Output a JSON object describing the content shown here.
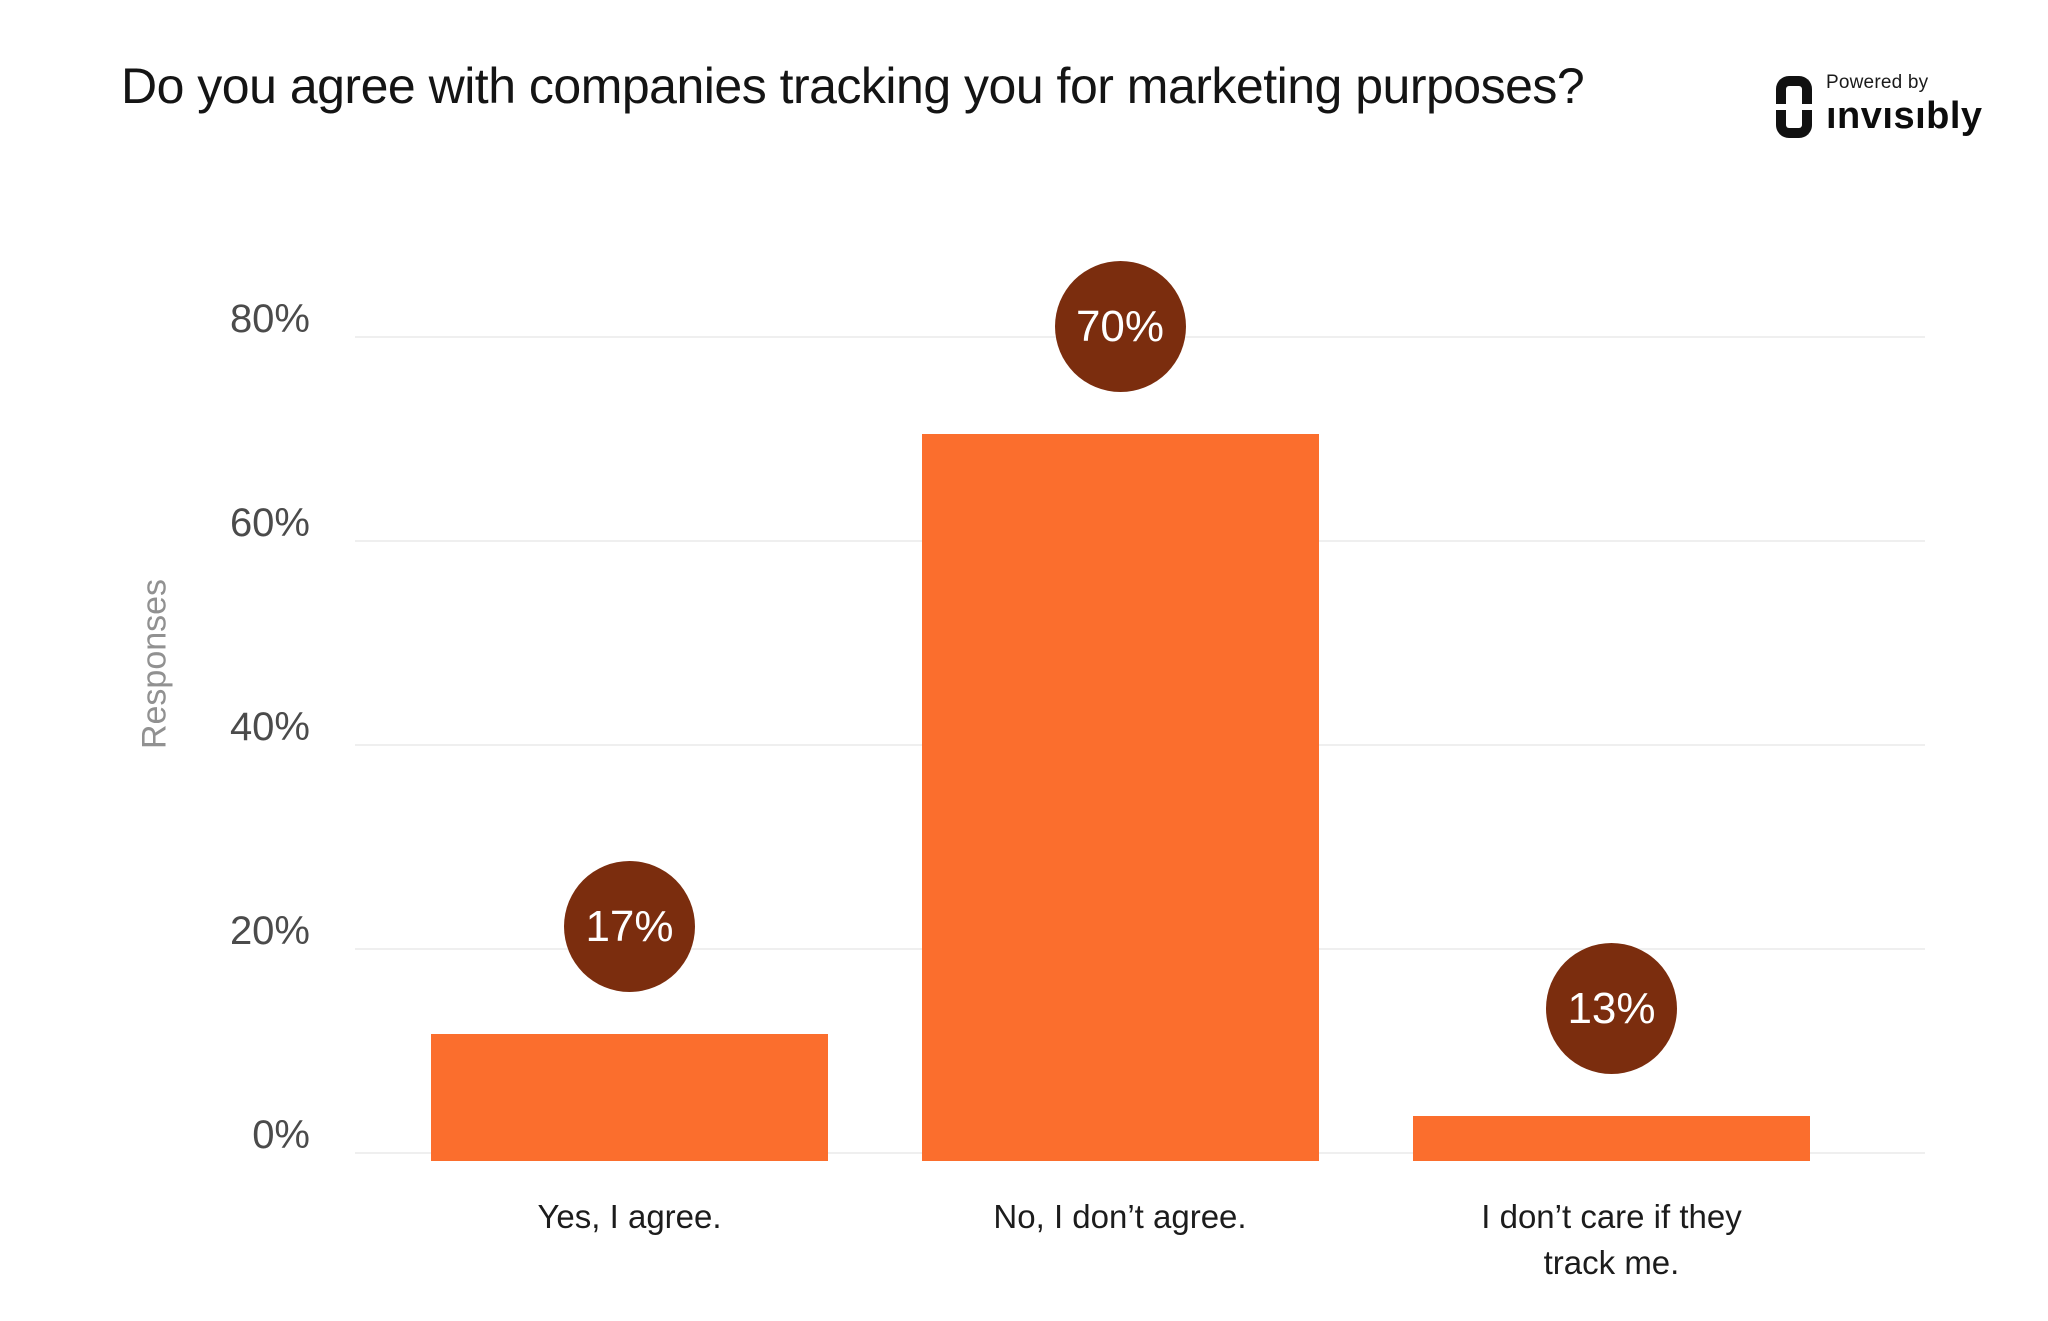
{
  "header": {
    "title": "Do you agree with companies tracking you for marketing purposes?",
    "brand": {
      "powered_by": "Powered by",
      "wordmark": "ınvısıbly"
    }
  },
  "chart_data": {
    "type": "bar",
    "title": "Do you agree with companies tracking you for marketing purposes?",
    "categories": [
      "Yes, I agree.",
      "No, I don’t agree.",
      "I don’t care if they track me."
    ],
    "values": [
      17,
      70,
      13
    ],
    "value_labels": [
      "17%",
      "70%",
      "13%"
    ],
    "bar_drawn_height_pct": [
      12.2,
      70,
      4.3
    ],
    "ylabel": "Responses",
    "xlabel": "",
    "yticks": [
      {
        "label": "0%",
        "value": 0
      },
      {
        "label": "20%",
        "value": 20
      },
      {
        "label": "40%",
        "value": 40
      },
      {
        "label": "60%",
        "value": 60
      },
      {
        "label": "80%",
        "value": 80
      }
    ],
    "ylim": [
      0,
      85
    ],
    "grid": "horizontal-only",
    "legend": false,
    "annotation_style": "circle-badge-above-each-bar",
    "colors": {
      "bar": "#fb6e2d",
      "badge": "#7b2d0e",
      "badge_text": "#ffffff",
      "grid_line": "#efefef",
      "tick_text": "#4b4b4b",
      "axis_label_text": "#919191",
      "category_text": "#1c1c1c",
      "title_text": "#141414",
      "background": "#ffffff"
    }
  }
}
